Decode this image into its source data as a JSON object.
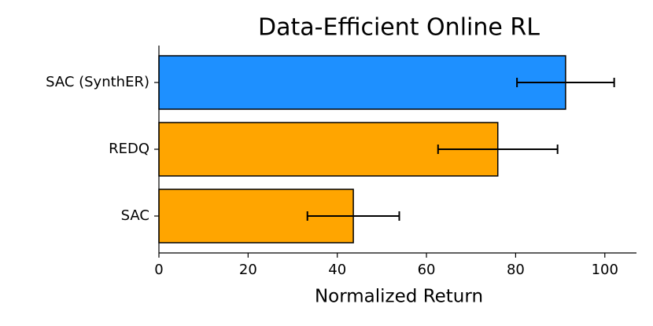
{
  "chart_data": {
    "type": "bar",
    "orientation": "horizontal",
    "title": "Data-Efficient Online RL",
    "x_label": "Normalized Return",
    "categories": [
      "SAC (SynthER)",
      "REDQ",
      "SAC"
    ],
    "values": [
      91.2,
      76.0,
      43.6
    ],
    "errors": [
      10.9,
      13.4,
      10.3
    ],
    "colors": [
      "#1e90ff",
      "#ffa500",
      "#ffa500"
    ],
    "xlim": [
      0,
      107.1
    ],
    "xticks": [
      0,
      20,
      40,
      60,
      80,
      100
    ],
    "grid": false
  }
}
